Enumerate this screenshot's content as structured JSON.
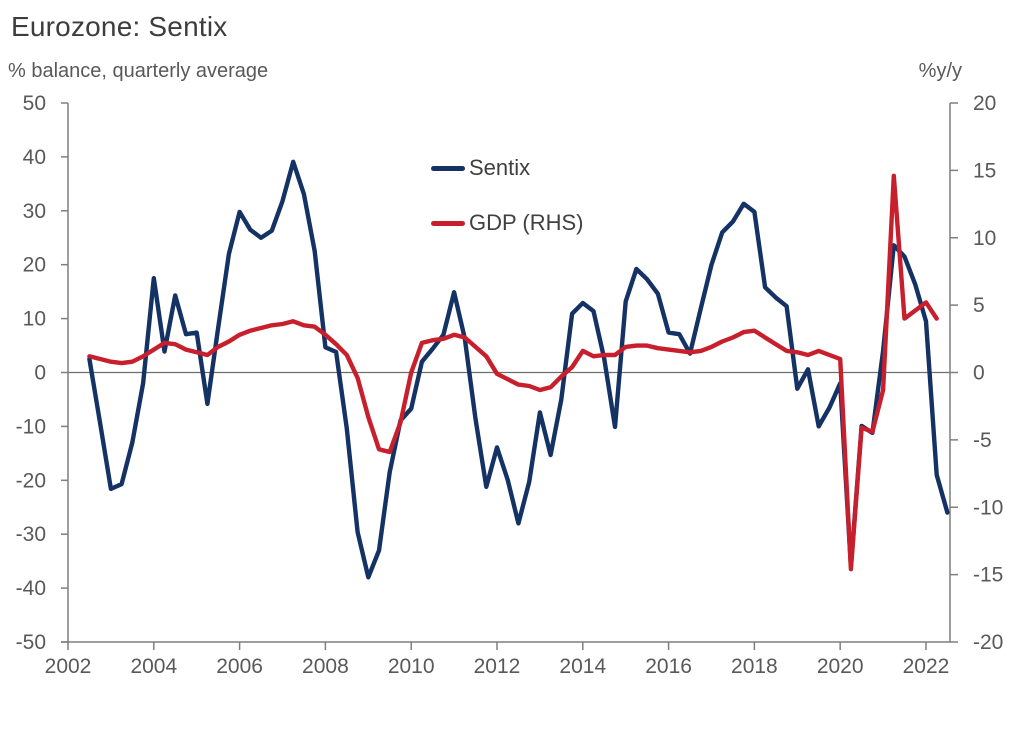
{
  "title": "Eurozone: Sentix",
  "axis_titles": {
    "left": "% balance, quarterly average",
    "right": "%y/y"
  },
  "legend": {
    "items": [
      {
        "label": "Sentix",
        "color": "#143263"
      },
      {
        "label": "GDP (RHS)",
        "color": "#c81f2d"
      }
    ]
  },
  "colors": {
    "background": "#ffffff",
    "title_text": "#3d3d3d",
    "axis_text": "#595959",
    "axis_line": "#7f7f7f",
    "zero_line": "#6e6e6e",
    "sentix_line": "#143263",
    "gdp_line": "#c81f2d"
  },
  "chart_data": {
    "type": "line",
    "title": "Eurozone: Sentix",
    "x_start": 2002.5,
    "x_step": 0.25,
    "x_axis": {
      "ticks": [
        2002,
        2004,
        2006,
        2008,
        2010,
        2012,
        2014,
        2016,
        2018,
        2020,
        2022
      ],
      "range": [
        2002,
        2022.56
      ],
      "grid": false
    },
    "left_axis": {
      "label": "% balance, quarterly average",
      "ticks": [
        50,
        40,
        30,
        20,
        10,
        0,
        -10,
        -20,
        -30,
        -40,
        -50
      ],
      "range": [
        -50,
        50
      ]
    },
    "right_axis": {
      "label": "%y/y",
      "ticks": [
        20,
        15,
        10,
        5,
        0,
        -5,
        -10,
        -15,
        -20
      ],
      "range": [
        -20,
        20
      ]
    },
    "series": [
      {
        "name": "Sentix",
        "axis": "left",
        "color": "#143263",
        "values": [
          2.5,
          -9.5,
          -21.6,
          -20.7,
          -13.0,
          -2.0,
          17.5,
          3.9,
          14.3,
          7.1,
          7.4,
          -5.8,
          8.2,
          22.0,
          29.8,
          26.5,
          25.0,
          26.3,
          31.8,
          39.1,
          33.1,
          22.5,
          4.7,
          3.8,
          -10.4,
          -29.6,
          -38.0,
          -33.0,
          -18.5,
          -8.9,
          -6.7,
          2.0,
          4.4,
          7.0,
          14.9,
          6.3,
          -8.6,
          -21.2,
          -13.9,
          -19.9,
          -28.0,
          -20.3,
          -7.4,
          -15.3,
          -5.0,
          10.9,
          12.9,
          11.4,
          2.6,
          -10.1,
          13.2,
          19.2,
          17.3,
          14.6,
          7.4,
          7.1,
          3.5,
          11.9,
          20.0,
          26.0,
          28.0,
          31.3,
          29.8,
          15.8,
          13.9,
          12.3,
          -3.0,
          0.6,
          -10.0,
          -6.5,
          -2.0,
          -36.0,
          -9.9,
          -11.2,
          4.0,
          23.6,
          21.5,
          16.3,
          9.5,
          -19.0,
          -26.0
        ]
      },
      {
        "name": "GDP (RHS)",
        "axis": "right",
        "color": "#c81f2d",
        "values": [
          1.2,
          1.0,
          0.8,
          0.7,
          0.8,
          1.2,
          1.7,
          2.2,
          2.1,
          1.7,
          1.5,
          1.3,
          1.9,
          2.3,
          2.8,
          3.1,
          3.3,
          3.5,
          3.6,
          3.8,
          3.5,
          3.4,
          2.8,
          2.1,
          1.3,
          -0.4,
          -3.3,
          -5.7,
          -5.9,
          -3.7,
          0.0,
          2.2,
          2.4,
          2.5,
          2.8,
          2.6,
          1.9,
          1.2,
          -0.1,
          -0.5,
          -0.9,
          -1.0,
          -1.3,
          -1.1,
          -0.3,
          0.4,
          1.6,
          1.2,
          1.3,
          1.3,
          1.9,
          2.0,
          2.0,
          1.8,
          1.7,
          1.6,
          1.5,
          1.6,
          1.9,
          2.3,
          2.6,
          3.0,
          3.1,
          2.6,
          2.1,
          1.6,
          1.5,
          1.3,
          1.6,
          1.3,
          1.0,
          -14.6,
          -4.1,
          -4.4,
          -1.3,
          14.6,
          4.0,
          4.6,
          5.2,
          4.0
        ]
      }
    ]
  }
}
